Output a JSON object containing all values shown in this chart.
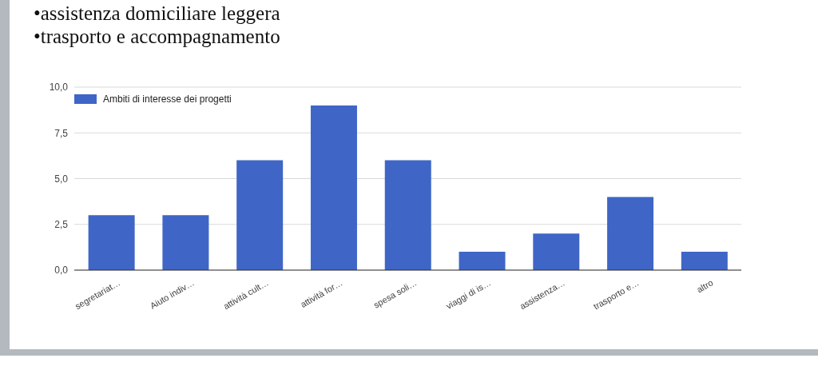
{
  "chart_data": {
    "type": "bar",
    "annotations": [
      "•assistenza domiciliare leggera",
      "•trasporto e accompagnamento"
    ],
    "categories": [
      "segretariat…",
      "Aiuto indiv…",
      "attività cult…",
      "attività for…",
      "spesa soli…",
      "viaggi di is…",
      "assistenza…",
      "trasporto e…",
      "altro"
    ],
    "series": [
      {
        "name": "Ambiti di interesse dei progetti",
        "color": "#3f66c6",
        "values": [
          3,
          3,
          6,
          9,
          6,
          1,
          2,
          4,
          1
        ]
      }
    ],
    "ylim": [
      0,
      10
    ],
    "yticks": [
      {
        "value": 0,
        "label": "0,0"
      },
      {
        "value": 2.5,
        "label": "2,5"
      },
      {
        "value": 5,
        "label": "5,0"
      },
      {
        "value": 7.5,
        "label": "7,5"
      },
      {
        "value": 10,
        "label": "10,0"
      }
    ],
    "grid": "y",
    "legend": "top left"
  }
}
